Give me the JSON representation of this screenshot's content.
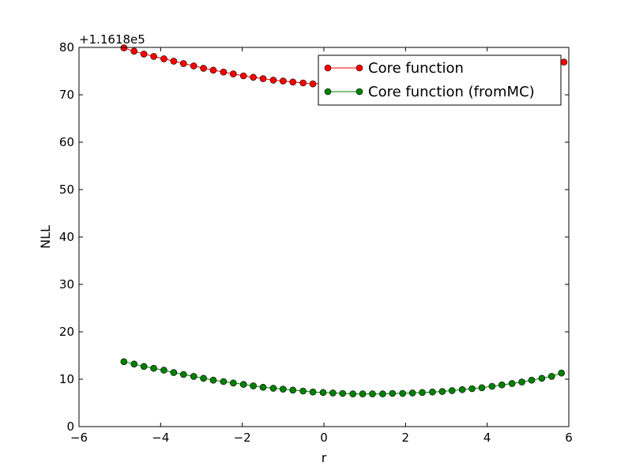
{
  "chart_data": {
    "type": "line",
    "title": "",
    "xlabel": "r",
    "ylabel": "NLL",
    "y_offset_label": "+1.1618e5",
    "xlim": [
      -6,
      6
    ],
    "ylim": [
      0,
      80
    ],
    "xticks": [
      -6,
      -4,
      -2,
      0,
      2,
      4,
      6
    ],
    "yticks": [
      0,
      10,
      20,
      30,
      40,
      50,
      60,
      70,
      80
    ],
    "xtick_labels": [
      "−6",
      "−4",
      "−2",
      "0",
      "2",
      "4",
      "6"
    ],
    "ytick_labels": [
      "0",
      "10",
      "20",
      "30",
      "40",
      "50",
      "60",
      "70",
      "80"
    ],
    "grid": false,
    "legend_position": "top-right",
    "series": [
      {
        "name": "Core function",
        "color": "#ff0000",
        "x": [
          -4.9,
          -4.65,
          -4.41,
          -4.17,
          -3.92,
          -3.68,
          -3.44,
          -3.19,
          -2.95,
          -2.71,
          -2.46,
          -2.22,
          -1.97,
          -1.73,
          -1.49,
          -1.24,
          -1.0,
          -0.76,
          -0.51,
          -0.27,
          5.88
        ],
        "y": [
          79.9,
          79.2,
          78.6,
          78.1,
          77.6,
          77.1,
          76.6,
          76.1,
          75.6,
          75.2,
          74.8,
          74.4,
          74.0,
          73.7,
          73.4,
          73.1,
          72.9,
          72.7,
          72.5,
          72.3,
          76.9
        ]
      },
      {
        "name": "Core function (fromMC)",
        "color": "#008000",
        "x": [
          -4.9,
          -4.65,
          -4.41,
          -4.17,
          -3.92,
          -3.68,
          -3.44,
          -3.19,
          -2.95,
          -2.71,
          -2.46,
          -2.22,
          -1.97,
          -1.73,
          -1.49,
          -1.24,
          -1.0,
          -0.76,
          -0.51,
          -0.27,
          -0.02,
          0.22,
          0.46,
          0.71,
          0.95,
          1.19,
          1.44,
          1.68,
          1.93,
          2.17,
          2.41,
          2.66,
          2.9,
          3.14,
          3.39,
          3.63,
          3.87,
          4.12,
          4.36,
          4.61,
          4.85,
          5.09,
          5.34,
          5.58,
          5.82
        ],
        "y": [
          13.7,
          13.2,
          12.7,
          12.3,
          11.9,
          11.4,
          11.0,
          10.6,
          10.2,
          9.8,
          9.5,
          9.2,
          8.9,
          8.6,
          8.3,
          8.1,
          7.9,
          7.7,
          7.5,
          7.3,
          7.2,
          7.1,
          7.0,
          6.9,
          6.9,
          6.9,
          6.9,
          7.0,
          7.0,
          7.1,
          7.2,
          7.3,
          7.4,
          7.6,
          7.8,
          8.0,
          8.2,
          8.5,
          8.8,
          9.1,
          9.4,
          9.8,
          10.2,
          10.6,
          11.3
        ]
      }
    ]
  }
}
